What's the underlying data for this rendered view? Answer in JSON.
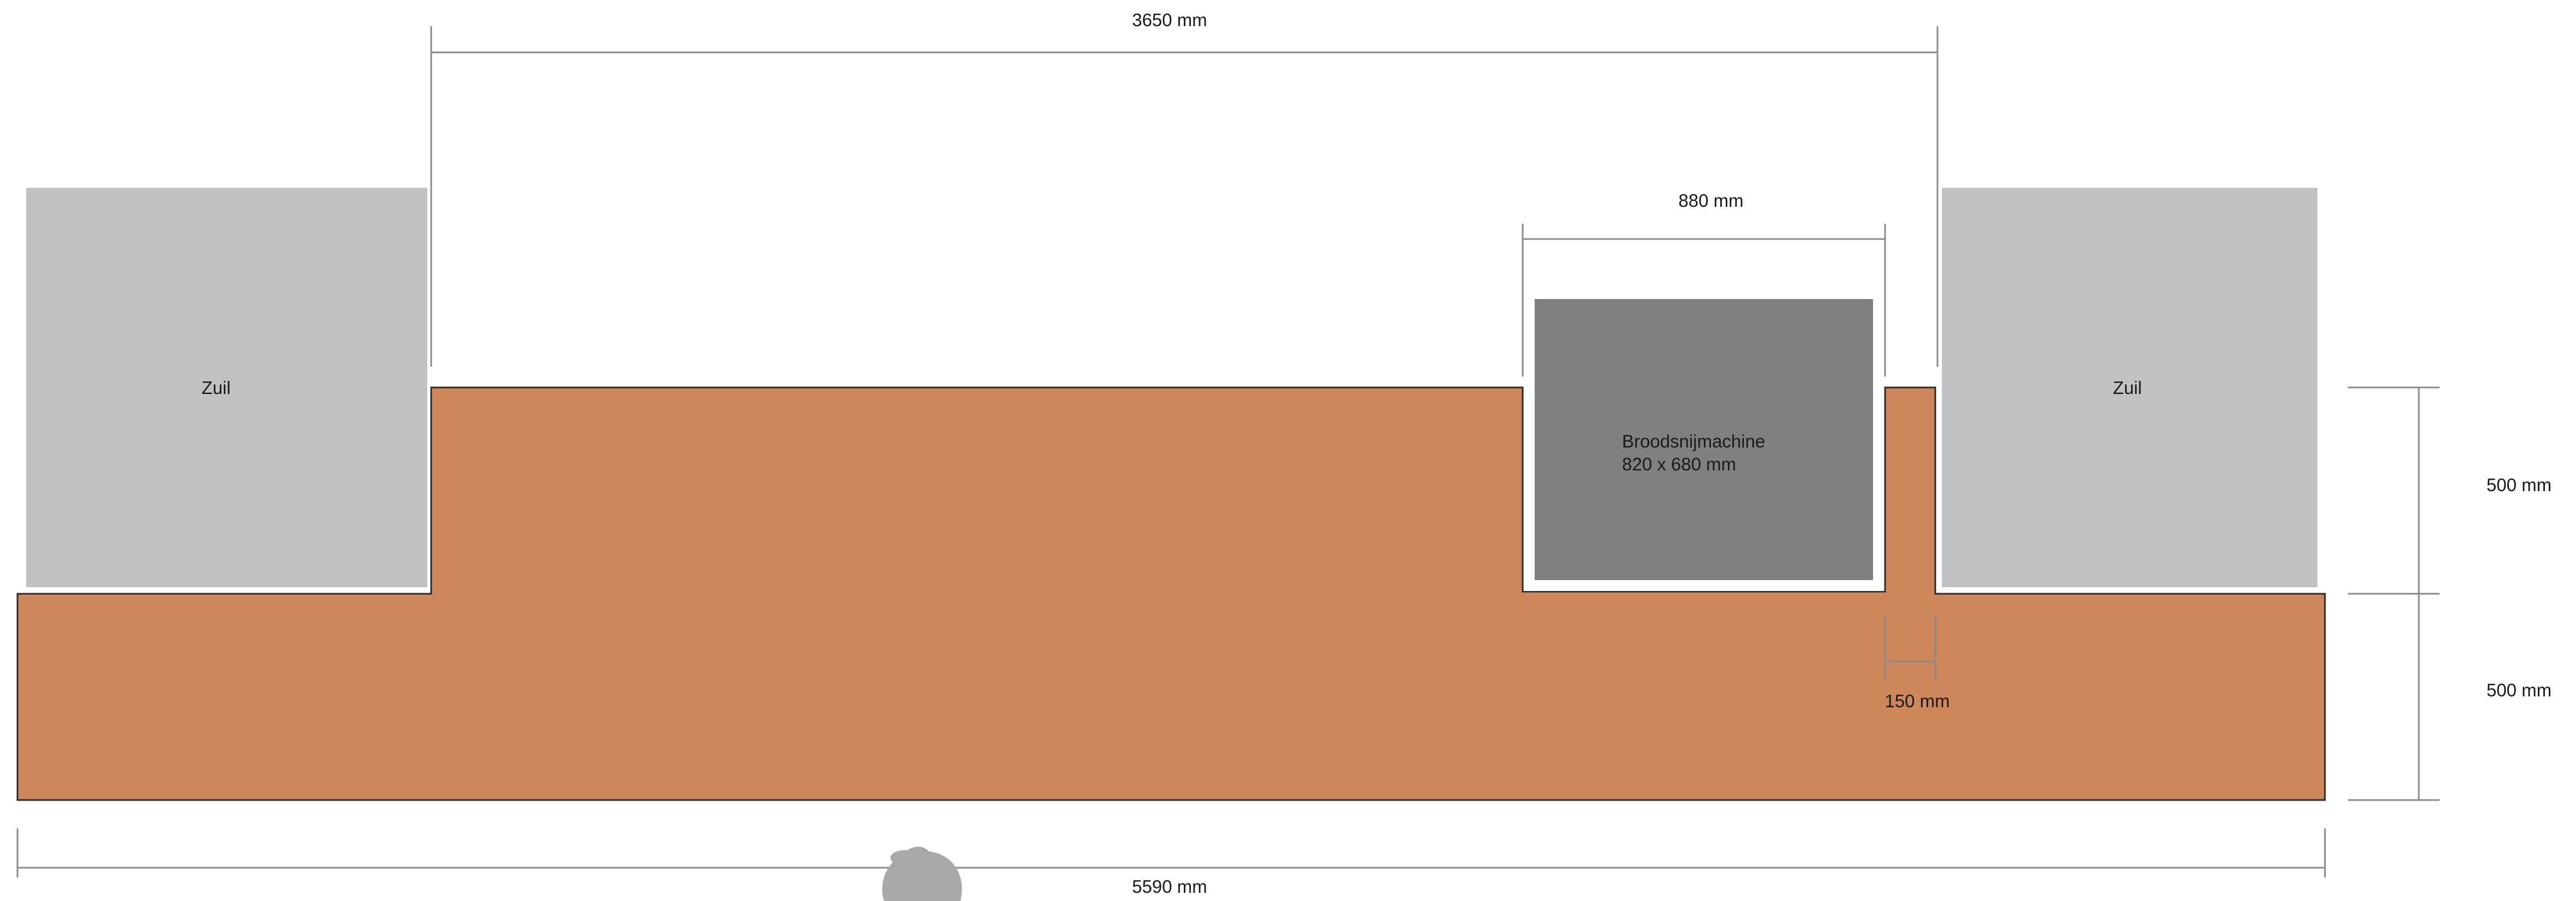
{
  "colors": {
    "counter_fill": "#cd875a",
    "counter_stroke": "#2a2a2a",
    "column_fill": "#c2c2c2",
    "machine_fill": "#808080",
    "dimension_line": "#8a8a8a",
    "blob_fill": "#a9a9a9",
    "text": "#1a1a1a"
  },
  "labels": {
    "column_left": "Zuil",
    "column_right": "Zuil",
    "machine_name": "Broodsnijmachine",
    "machine_size": "820 x 680 mm"
  },
  "dimensions": {
    "top_span": "3650 mm",
    "machine_width": "880 mm",
    "gap": "150 mm",
    "total_width": "5590 mm",
    "upper_depth": "500 mm",
    "lower_depth": "500 mm"
  }
}
